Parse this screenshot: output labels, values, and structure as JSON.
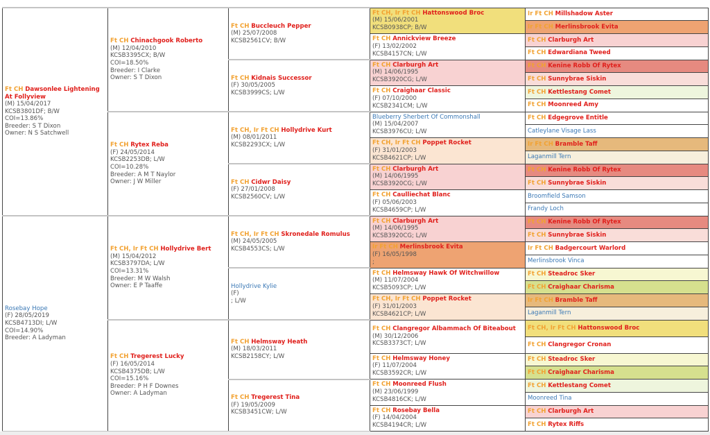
{
  "colors": {
    "yellow": "#f1df7c",
    "pink": "#f8d2d2",
    "peach": "#fbe5d2",
    "orange": "#eea372",
    "red": "#e68a80",
    "lightpink": "#f9ddd9",
    "lightgreen": "#eef5dd",
    "tan": "#e6b97c",
    "cream": "#f7efdc",
    "paleyellow": "#f7f7d2",
    "olive": "#d6e08e",
    "white": "#ffffff"
  },
  "gen1": [
    {
      "title": "Ft CH",
      "name": "Dawsonlee Lightening At Follyview",
      "lines": [
        "(M) 15/04/2017",
        "KCSB3801DF; B/W",
        "COI=13.86%",
        "Breeder: S T Dixon",
        "Owner: N S Satchwell"
      ]
    },
    {
      "title": "",
      "name": "Rosebay Hope",
      "lines": [
        "(F) 28/05/2019",
        "KCSB4713DI; L/W",
        "COI=14.90%",
        "Breeder: A Ladyman"
      ]
    }
  ],
  "gen2": [
    {
      "title": "Ft CH",
      "name": "Chinachgook Roberto",
      "lines": [
        "(M) 12/04/2010",
        "KCSB3395CX; B/W",
        "COI=18.50%",
        "Breeder: I Clarke",
        "Owner: S T Dixon"
      ]
    },
    {
      "title": "Ft CH",
      "name": "Rytex Reba",
      "lines": [
        "(F) 24/05/2014",
        "KCSB2253DB; L/W",
        "COI=10.28%",
        "Breeder: A M T Naylor",
        "Owner: J W Miller"
      ]
    },
    {
      "title": "Ft CH, Ir Ft CH",
      "name": "Hollydrive Bert",
      "lines": [
        "(M) 15/04/2012",
        "KCSB3797DA; L/W",
        "COI=13.31%",
        "Breeder: M W Walsh",
        "Owner: E P Taaffe"
      ]
    },
    {
      "title": "Ft CH",
      "name": "Tregerest Lucky",
      "lines": [
        "(F) 16/05/2014",
        "KCSB4375DB; L/W",
        "COI=15.16%",
        "Breeder: P H F Downes",
        "Owner: A Ladyman"
      ]
    }
  ],
  "gen3": [
    {
      "title": "Ft CH",
      "name": "Buccleuch Pepper",
      "lines": [
        "(M) 25/07/2008",
        "KCSB2561CV; B/W"
      ]
    },
    {
      "title": "Ft CH",
      "name": "Kidnais Successor",
      "lines": [
        "(F) 30/05/2005",
        "KCSB3999CS; L/W"
      ]
    },
    {
      "title": "Ft CH, Ir Ft CH",
      "name": "Hollydrive Kurt",
      "lines": [
        "(M) 08/01/2011",
        "KCSB2293CX; L/W"
      ]
    },
    {
      "title": "Ft CH",
      "name": "Cidwr Daisy",
      "lines": [
        "(F) 27/01/2008",
        "KCSB2560CV; L/W"
      ]
    },
    {
      "title": "Ft CH, Ir Ft CH",
      "name": "Skronedale Romulus",
      "lines": [
        "(M) 24/05/2005",
        "KCSB4553CS; L/W"
      ]
    },
    {
      "title": "",
      "name": "Hollydrive Kylie",
      "lines": [
        "(F)",
        "; L/W"
      ]
    },
    {
      "title": "Ft CH",
      "name": "Helmsway Heath",
      "lines": [
        "(M) 18/03/2011",
        "KCSB2158CY; L/W"
      ]
    },
    {
      "title": "Ft CH",
      "name": "Tregerest Tina",
      "lines": [
        "(F) 19/05/2009",
        "KCSB3451CW; L/W"
      ]
    }
  ],
  "gen4": [
    {
      "title": "Ft CH, Ir Ft CH",
      "name": "Hattonswood Broc",
      "lines": [
        "(M) 15/06/2001",
        "KCSB0938CP; B/W"
      ],
      "bg": "yellow"
    },
    {
      "title": "Ft CH",
      "name": "Annickview Breeze",
      "lines": [
        "(F) 13/02/2002",
        "KCSB4157CN; L/W"
      ],
      "bg": "white"
    },
    {
      "title": "Ft CH",
      "name": "Clarburgh Art",
      "lines": [
        "(M) 14/06/1995",
        "KCSB3920CG; L/W"
      ],
      "bg": "pink"
    },
    {
      "title": "Ft CH",
      "name": "Craighaar Classic",
      "lines": [
        "(F) 07/10/2000",
        "KCSB2341CM; L/W"
      ],
      "bg": "white"
    },
    {
      "title": "",
      "name": "Blueberry Sherbert Of Commonshall",
      "lines": [
        "(M) 15/04/2007",
        "KCSB3976CU; L/W"
      ],
      "bg": "white"
    },
    {
      "title": "Ft CH, Ir Ft CH",
      "name": "Poppet Rocket",
      "lines": [
        "(F) 31/01/2003",
        "KCSB4621CP; L/W"
      ],
      "bg": "peach"
    },
    {
      "title": "Ft CH",
      "name": "Clarburgh Art",
      "lines": [
        "(M) 14/06/1995",
        "KCSB3920CG; L/W"
      ],
      "bg": "pink"
    },
    {
      "title": "Ft CH",
      "name": "Caulliechat Blanc",
      "lines": [
        "(F) 05/06/2003",
        "KCSB4659CP; L/W"
      ],
      "bg": "white"
    },
    {
      "title": "Ft CH",
      "name": "Clarburgh Art",
      "lines": [
        "(M) 14/06/1995",
        "KCSB3920CG; L/W"
      ],
      "bg": "pink"
    },
    {
      "title": "Ir Ft CH",
      "name": "Merlinsbrook Evita",
      "lines": [
        "(F) 16/05/1998",
        ";"
      ],
      "bg": "orange"
    },
    {
      "title": "Ft CH",
      "name": "Helmsway Hawk Of Witchwillow",
      "lines": [
        "(M) 11/07/2004",
        "KCSB5093CP; L/W"
      ],
      "bg": "white"
    },
    {
      "title": "Ft CH, Ir Ft CH",
      "name": "Poppet Rocket",
      "lines": [
        "(F) 31/01/2003",
        "KCSB4621CP; L/W"
      ],
      "bg": "peach"
    },
    {
      "title": "Ft CH",
      "name": "Clangregor Albammach Of Biteabout",
      "lines": [
        "(M) 30/12/2006",
        "KCSB3373CT; L/W"
      ],
      "bg": "white"
    },
    {
      "title": "Ft CH",
      "name": "Helmsway Honey",
      "lines": [
        "(F) 11/07/2004",
        "KCSB3592CR; L/W"
      ],
      "bg": "white"
    },
    {
      "title": "Ft CH",
      "name": "Moonreed Flush",
      "lines": [
        "(M) 23/06/1999",
        "KCSB4816CK; L/W"
      ],
      "bg": "white"
    },
    {
      "title": "Ft CH",
      "name": "Rosebay Bella",
      "lines": [
        "(F) 14/04/2004",
        "KCSB4194CR; L/W"
      ],
      "bg": "white"
    }
  ],
  "gen5": [
    {
      "title": "Ir Ft CH",
      "name": "Millshadow Aster",
      "bg": "white"
    },
    {
      "title": "Ir Ft CH",
      "name": "Merlinsbrook Evita",
      "bg": "orange"
    },
    {
      "title": "Ft CH",
      "name": "Clarburgh Art",
      "bg": "pink"
    },
    {
      "title": "Ft CH",
      "name": "Edwardiana Tweed",
      "bg": "white"
    },
    {
      "title": "Ft CH",
      "name": "Kenine Robb Of Rytex",
      "bg": "red"
    },
    {
      "title": "Ft CH",
      "name": "Sunnybrae Siskin",
      "bg": "lightpink"
    },
    {
      "title": "Ft CH",
      "name": "Kettlestang Comet",
      "bg": "lightgreen"
    },
    {
      "title": "Ft CH",
      "name": "Moonreed Amy",
      "bg": "white"
    },
    {
      "title": "Ft CH",
      "name": "Edgegrove Entitle",
      "bg": "white"
    },
    {
      "title": "",
      "name": "Catleylane Visage Lass",
      "bg": "white"
    },
    {
      "title": "Ir Ft CH",
      "name": "Bramble Taff",
      "bg": "tan"
    },
    {
      "title": "",
      "name": "Laganmill Tern",
      "bg": "cream"
    },
    {
      "title": "Ft CH",
      "name": "Kenine Robb Of Rytex",
      "bg": "red"
    },
    {
      "title": "Ft CH",
      "name": "Sunnybrae Siskin",
      "bg": "lightpink"
    },
    {
      "title": "",
      "name": "Broomfield Samson",
      "bg": "white"
    },
    {
      "title": "",
      "name": "Frandy Loch",
      "bg": "white"
    },
    {
      "title": "Ft CH",
      "name": "Kenine Robb Of Rytex",
      "bg": "red"
    },
    {
      "title": "Ft CH",
      "name": "Sunnybrae Siskin",
      "bg": "lightpink"
    },
    {
      "title": "Ir Ft CH",
      "name": "Badgercourt Warlord",
      "bg": "white"
    },
    {
      "title": "",
      "name": "Merlinsbrook Vinca",
      "bg": "white"
    },
    {
      "title": "Ft CH",
      "name": "Steadroc Sker",
      "bg": "paleyellow"
    },
    {
      "title": "Ft CH",
      "name": "Craighaar Charisma",
      "bg": "olive"
    },
    {
      "title": "Ir Ft CH",
      "name": "Bramble Taff",
      "bg": "tan"
    },
    {
      "title": "",
      "name": "Laganmill Tern",
      "bg": "cream"
    },
    {
      "title": "Ft CH, Ir Ft CH",
      "name": "Hattonswood Broc",
      "bg": "yellow"
    },
    {
      "title": "Ft CH",
      "name": "Clangregor Cronan",
      "bg": "white"
    },
    {
      "title": "Ft CH",
      "name": "Steadroc Sker",
      "bg": "paleyellow"
    },
    {
      "title": "Ft CH",
      "name": "Craighaar Charisma",
      "bg": "olive"
    },
    {
      "title": "Ft CH",
      "name": "Kettlestang Comet",
      "bg": "lightgreen"
    },
    {
      "title": "",
      "name": "Moonreed Tina",
      "bg": "white"
    },
    {
      "title": "Ft CH",
      "name": "Clarburgh Art",
      "bg": "pink"
    },
    {
      "title": "Ft CH",
      "name": "Rytex Riffs",
      "bg": "white"
    }
  ]
}
